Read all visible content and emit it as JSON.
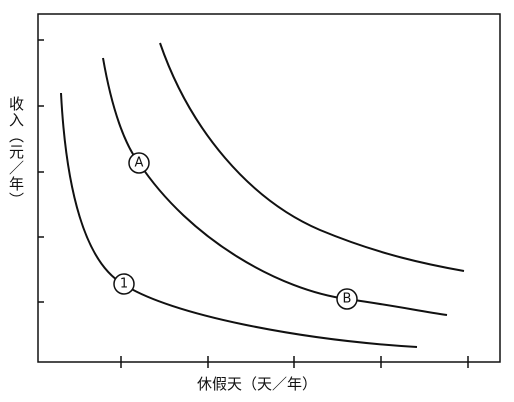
{
  "axes": {
    "y_label": "收入（元／年）",
    "x_label": "休假天（天／年）"
  },
  "points": [
    {
      "label": "A"
    },
    {
      "label": "B"
    },
    {
      "label": "1"
    }
  ]
}
